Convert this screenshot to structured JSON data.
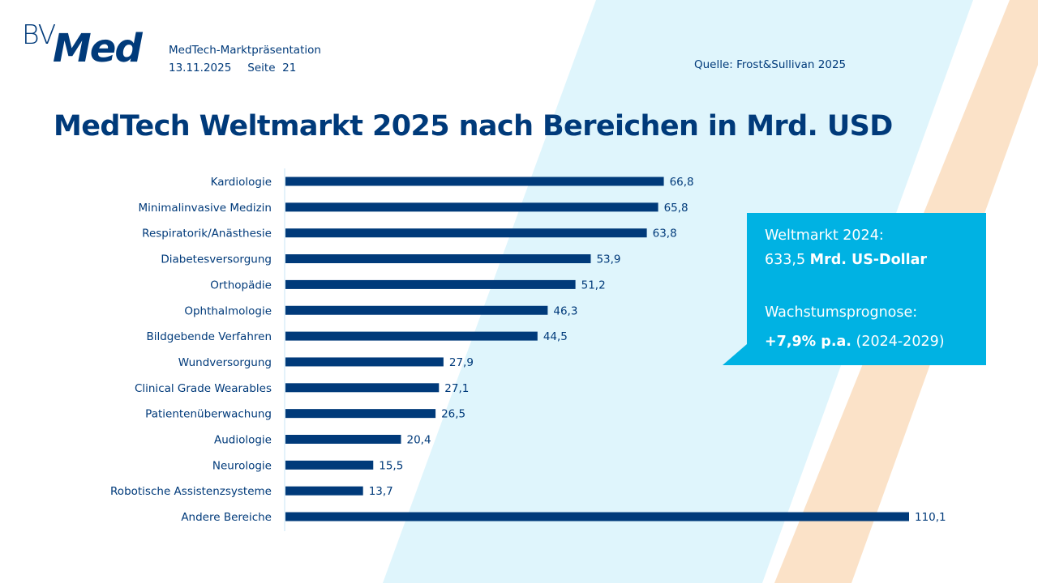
{
  "header": {
    "logo": {
      "prefix": "BV",
      "main": "Med"
    },
    "presentation": "MedTech-Marktpräsentation",
    "date": "13.11.2025",
    "page_label": "Seite",
    "page_number": "21",
    "source": "Quelle: Frost&Sullivan 2025"
  },
  "colors": {
    "primary": "#003a7a",
    "accent": "#00b2e3",
    "bg_light_blue": "#dff5fc",
    "bg_peach": "#fbe2c8",
    "axis_line": "#c8e6f5"
  },
  "callout": {
    "line1": "Weltmarkt  2024:",
    "line2_value": "633,5 ",
    "line2_unit": "Mrd. US-Dollar",
    "line3": "Wachstumsprognose:",
    "line4_value": "+7,9% p.a.",
    "line4_period": " (2024-2029)"
  },
  "chart_data": {
    "type": "bar",
    "orientation": "horizontal",
    "title": "MedTech Weltmarkt 2025 nach Bereichen in Mrd. USD",
    "xlabel": "",
    "ylabel": "",
    "xlim": [
      0,
      110.1
    ],
    "grid": false,
    "legend": "none",
    "categories": [
      "Kardiologie",
      "Minimalinvasive Medizin",
      "Respiratorik/Anästhesie",
      "Diabetesversorgung",
      "Orthopädie",
      "Ophthalmologie",
      "Bildgebende Verfahren",
      "Wundversorgung",
      "Clinical Grade Wearables",
      "Patientenüberwachung",
      "Audiologie",
      "Neurologie",
      "Robotische Assistenzsysteme",
      "Andere Bereiche"
    ],
    "values": [
      66.8,
      65.8,
      63.8,
      53.9,
      51.2,
      46.3,
      44.5,
      27.9,
      27.1,
      26.5,
      20.4,
      15.5,
      13.7,
      110.1
    ],
    "value_labels": [
      "66,8",
      "65,8",
      "63,8",
      "53,9",
      "51,2",
      "46,3",
      "44,5",
      "27,9",
      "27,1",
      "26,5",
      "20,4",
      "15,5",
      "13,7",
      "110,1"
    ]
  }
}
